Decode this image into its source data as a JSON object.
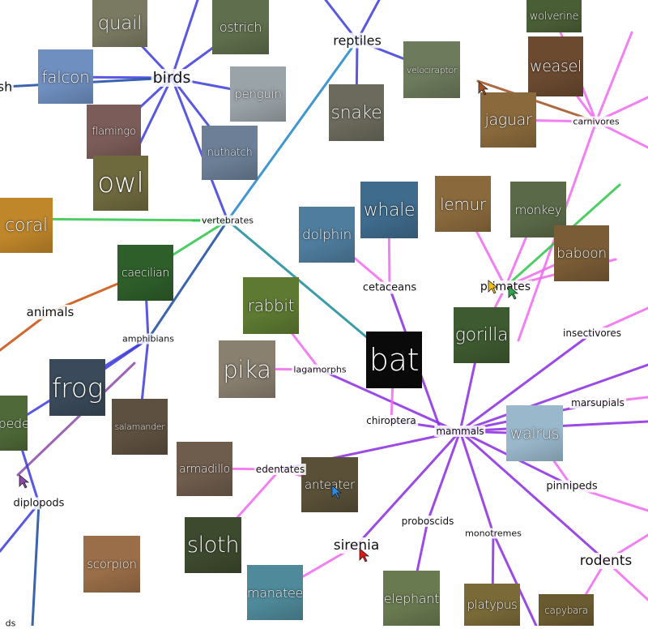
{
  "category_labels": [
    {
      "id": "reptiles",
      "text": "reptiles"
    },
    {
      "id": "birds",
      "text": "birds"
    },
    {
      "id": "vertebrates",
      "text": "vertebrates"
    },
    {
      "id": "carnivores",
      "text": "carnivores"
    },
    {
      "id": "animals",
      "text": "animals"
    },
    {
      "id": "amphibians",
      "text": "amphibians"
    },
    {
      "id": "cetaceans",
      "text": "cetaceans"
    },
    {
      "id": "primates",
      "text": "primates"
    },
    {
      "id": "insectivores",
      "text": "insectivores"
    },
    {
      "id": "lagamorphs",
      "text": "lagamorphs"
    },
    {
      "id": "chiroptera",
      "text": "chiroptera"
    },
    {
      "id": "mammals",
      "text": "mammals"
    },
    {
      "id": "marsupials",
      "text": "marsupials"
    },
    {
      "id": "edentates",
      "text": "edentates"
    },
    {
      "id": "pinnipeds",
      "text": "pinnipeds"
    },
    {
      "id": "diplopods",
      "text": "diplopods"
    },
    {
      "id": "proboscids",
      "text": "proboscids"
    },
    {
      "id": "monotremes",
      "text": "monotremes"
    },
    {
      "id": "sirenia",
      "text": "sirenia"
    },
    {
      "id": "rodents",
      "text": "rodents"
    },
    {
      "id": "fish",
      "text": "sh"
    },
    {
      "id": "arachnids",
      "text": "ds"
    }
  ],
  "animal_tiles": [
    {
      "id": "quail",
      "text": "quail",
      "color": "#7a7a62"
    },
    {
      "id": "ostrich",
      "text": "ostrich",
      "color": "#5f6e4c"
    },
    {
      "id": "wolverine",
      "text": "wolverine",
      "color": "#4a5e36"
    },
    {
      "id": "falcon",
      "text": "falcon",
      "color": "#6f8fc0"
    },
    {
      "id": "velociraptor",
      "text": "velociraptor",
      "color": "#6d7a5c"
    },
    {
      "id": "weasel",
      "text": "weasel",
      "color": "#6b4a30"
    },
    {
      "id": "penguin",
      "text": "penguin",
      "color": "#9aa3a8"
    },
    {
      "id": "flamingo",
      "text": "flamingo",
      "color": "#7c5c58"
    },
    {
      "id": "snake",
      "text": "snake",
      "color": "#6b6a5c"
    },
    {
      "id": "jaguar",
      "text": "jaguar",
      "color": "#8a6a3c"
    },
    {
      "id": "nuthatch",
      "text": "nuthatch",
      "color": "#6c7f96"
    },
    {
      "id": "owl",
      "text": "owl",
      "color": "#6f6a3e"
    },
    {
      "id": "whale",
      "text": "whale",
      "color": "#3f6b8c"
    },
    {
      "id": "lemur",
      "text": "lemur",
      "color": "#8a6a3c"
    },
    {
      "id": "monkey",
      "text": "monkey",
      "color": "#5a6a48"
    },
    {
      "id": "coral",
      "text": "coral",
      "color": "#c0862a"
    },
    {
      "id": "dolphin",
      "text": "dolphin",
      "color": "#4f7d9e"
    },
    {
      "id": "baboon",
      "text": "baboon",
      "color": "#7a5c36"
    },
    {
      "id": "caecilian",
      "text": "caecilian",
      "color": "#2e5e2a"
    },
    {
      "id": "rabbit",
      "text": "rabbit",
      "color": "#5e7a32"
    },
    {
      "id": "gorilla",
      "text": "gorilla",
      "color": "#3e5a30"
    },
    {
      "id": "bat",
      "text": "bat",
      "color": "#0a0a0a"
    },
    {
      "id": "pika",
      "text": "pika",
      "color": "#8a8070"
    },
    {
      "id": "frog",
      "text": "frog",
      "color": "#3a4a5a"
    },
    {
      "id": "centipede",
      "text": "pede",
      "color": "#4f6a38"
    },
    {
      "id": "salamander",
      "text": "salamander",
      "color": "#5e5040"
    },
    {
      "id": "walrus",
      "text": "walrus",
      "color": "#9ab8cc"
    },
    {
      "id": "armadillo",
      "text": "armadillo",
      "color": "#6e5c4c"
    },
    {
      "id": "anteater",
      "text": "anteater",
      "color": "#5a5038"
    },
    {
      "id": "sloth",
      "text": "sloth",
      "color": "#3e4a2e"
    },
    {
      "id": "scorpion",
      "text": "scorpion",
      "color": "#9a6e48"
    },
    {
      "id": "manatee",
      "text": "manatee",
      "color": "#4f8a9a"
    },
    {
      "id": "elephant",
      "text": "elephant",
      "color": "#6a7a50"
    },
    {
      "id": "platypus",
      "text": "platypus",
      "color": "#7a6a38"
    },
    {
      "id": "capybara",
      "text": "capybara",
      "color": "#6a5a30"
    }
  ],
  "colors": {
    "blue_edge": "#3b3bdc",
    "green_edge": "#2fc64a",
    "magenta_edge": "#f06af0",
    "purple_edge": "#8a2be2",
    "orange_edge": "#c8500a",
    "brown_edge": "#a05020",
    "navy_edge": "#1a4aa0",
    "label_text": "#111111",
    "tile_text": "#ffffff"
  },
  "cursors": [
    {
      "id": "red-cursor",
      "color": "#e01818"
    },
    {
      "id": "blue-cursor",
      "color": "#2a8ae8"
    },
    {
      "id": "yellow-cursor",
      "color": "#f0c010"
    },
    {
      "id": "green-cursor",
      "color": "#2aa84a"
    },
    {
      "id": "purple-cursor",
      "color": "#8a4aa8"
    },
    {
      "id": "brown-cursor",
      "color": "#a05020"
    }
  ]
}
